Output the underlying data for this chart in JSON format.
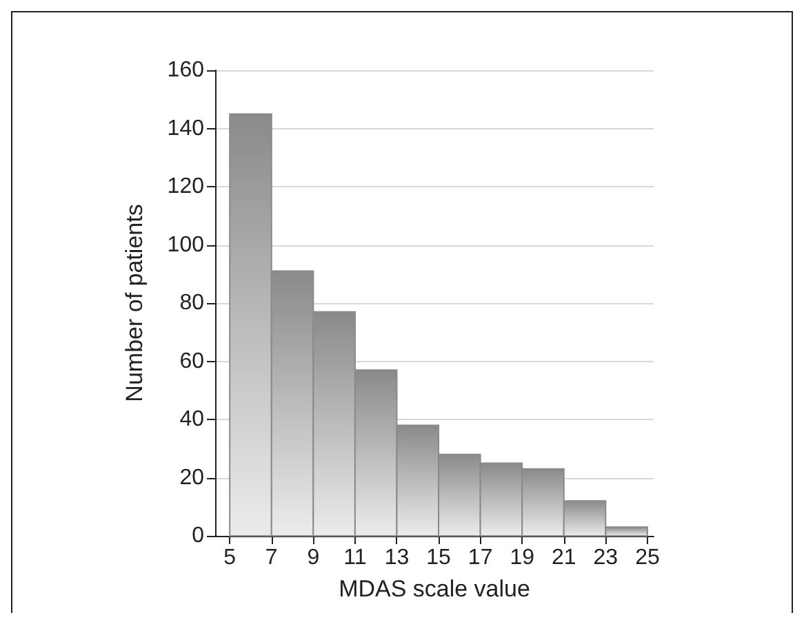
{
  "chart_data": {
    "type": "histogram",
    "xlabel": "MDAS scale value",
    "ylabel": "Number of patients",
    "bins": [
      5,
      7,
      9,
      11,
      13,
      15,
      17,
      19,
      21,
      23,
      25
    ],
    "values": [
      145,
      91,
      77,
      57,
      38,
      28,
      25,
      23,
      12,
      3
    ],
    "color": "#8a8a8a",
    "xlim": [
      4.3,
      25.3
    ],
    "xticks": [
      5,
      7,
      9,
      11,
      13,
      15,
      17,
      19,
      21,
      23,
      25
    ],
    "ylim": [
      0,
      160
    ],
    "yticks": [
      0,
      20,
      40,
      60,
      80,
      100,
      120,
      140,
      160
    ],
    "grid": "y"
  }
}
